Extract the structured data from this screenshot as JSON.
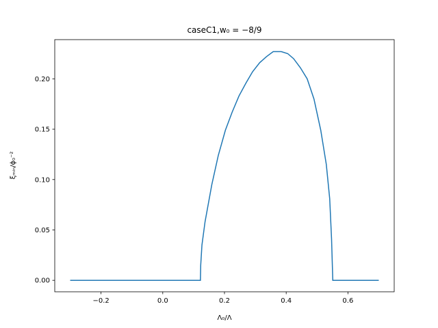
{
  "chart_data": {
    "type": "line",
    "title": "caseC1,w₀ = −8/9",
    "x_label": "Λ₀/Λ",
    "y_label": "ξₘᵢₙ/ϕ₀⁻²",
    "x": [
      -0.3,
      0.122,
      0.123,
      0.127,
      0.137,
      0.159,
      0.18,
      0.203,
      0.225,
      0.247,
      0.27,
      0.291,
      0.314,
      0.336,
      0.358,
      0.384,
      0.405,
      0.424,
      0.446,
      0.468,
      0.49,
      0.512,
      0.53,
      0.541,
      0.547,
      0.551,
      0.7
    ],
    "series": [
      {
        "color": "#1f77b4",
        "values": [
          0,
          0,
          0.015,
          0.035,
          0.058,
          0.095,
          0.124,
          0.149,
          0.167,
          0.183,
          0.196,
          0.207,
          0.216,
          0.222,
          0.227,
          0.227,
          0.225,
          0.22,
          0.211,
          0.2,
          0.18,
          0.149,
          0.115,
          0.081,
          0.041,
          0,
          0
        ]
      }
    ],
    "xlim": [
      -0.35,
      0.75
    ],
    "ylim": [
      -0.0114,
      0.2389
    ],
    "xticks": [
      {
        "value": -0.2,
        "label": "−0.2"
      },
      {
        "value": 0,
        "label": "0.0"
      },
      {
        "value": 0.2,
        "label": "0.2"
      },
      {
        "value": 0.4,
        "label": "0.4"
      },
      {
        "value": 0.6,
        "label": "0.6"
      }
    ],
    "yticks": [
      {
        "value": 0,
        "label": "0.00"
      },
      {
        "value": 0.05,
        "label": "0.05"
      },
      {
        "value": 0.1,
        "label": "0.10"
      },
      {
        "value": 0.15,
        "label": "0.15"
      },
      {
        "value": 0.2,
        "label": "0.20"
      }
    ],
    "grid": false
  }
}
